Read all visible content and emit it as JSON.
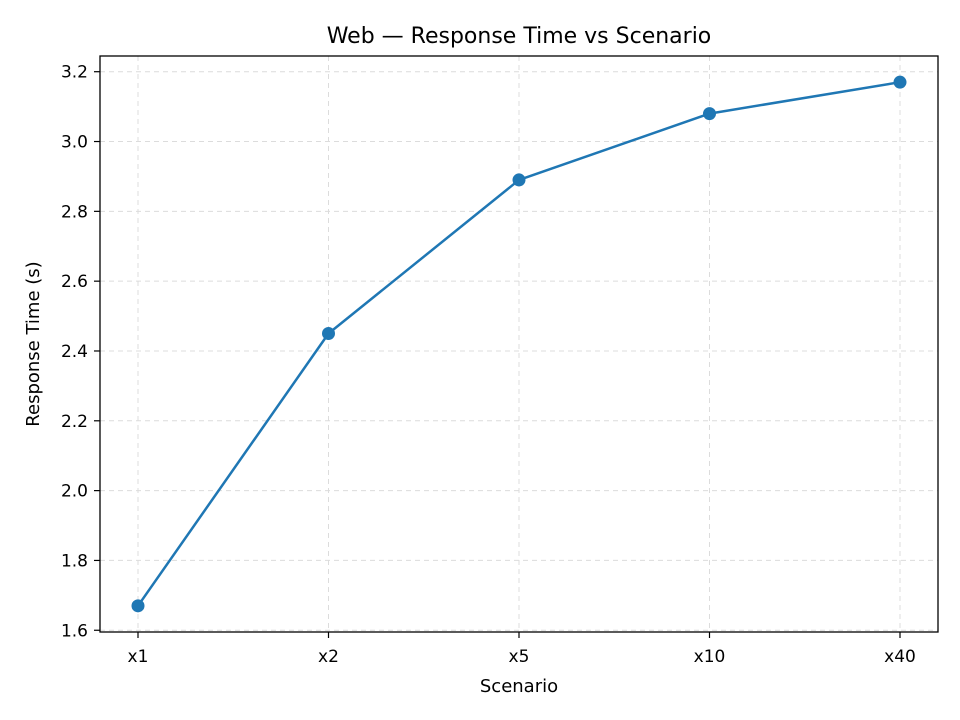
{
  "chart_data": {
    "type": "line",
    "title": "Web — Response Time vs Scenario",
    "xlabel": "Scenario",
    "ylabel": "Response Time (s)",
    "categories": [
      "x1",
      "x2",
      "x5",
      "x10",
      "x40"
    ],
    "series": [
      {
        "values": [
          1.67,
          2.45,
          2.89,
          3.08,
          3.17
        ],
        "color": "#1f77b4",
        "marker": "circle"
      }
    ],
    "ylim": [
      1.595,
      3.245
    ],
    "yticks": [
      1.6,
      1.8,
      2.0,
      2.2,
      2.4,
      2.6,
      2.8,
      3.0,
      3.2
    ],
    "ytick_labels": [
      "1.6",
      "1.8",
      "2.0",
      "2.2",
      "2.4",
      "2.6",
      "2.8",
      "3.0",
      "3.2"
    ],
    "grid": true,
    "grid_style": "dashed"
  }
}
